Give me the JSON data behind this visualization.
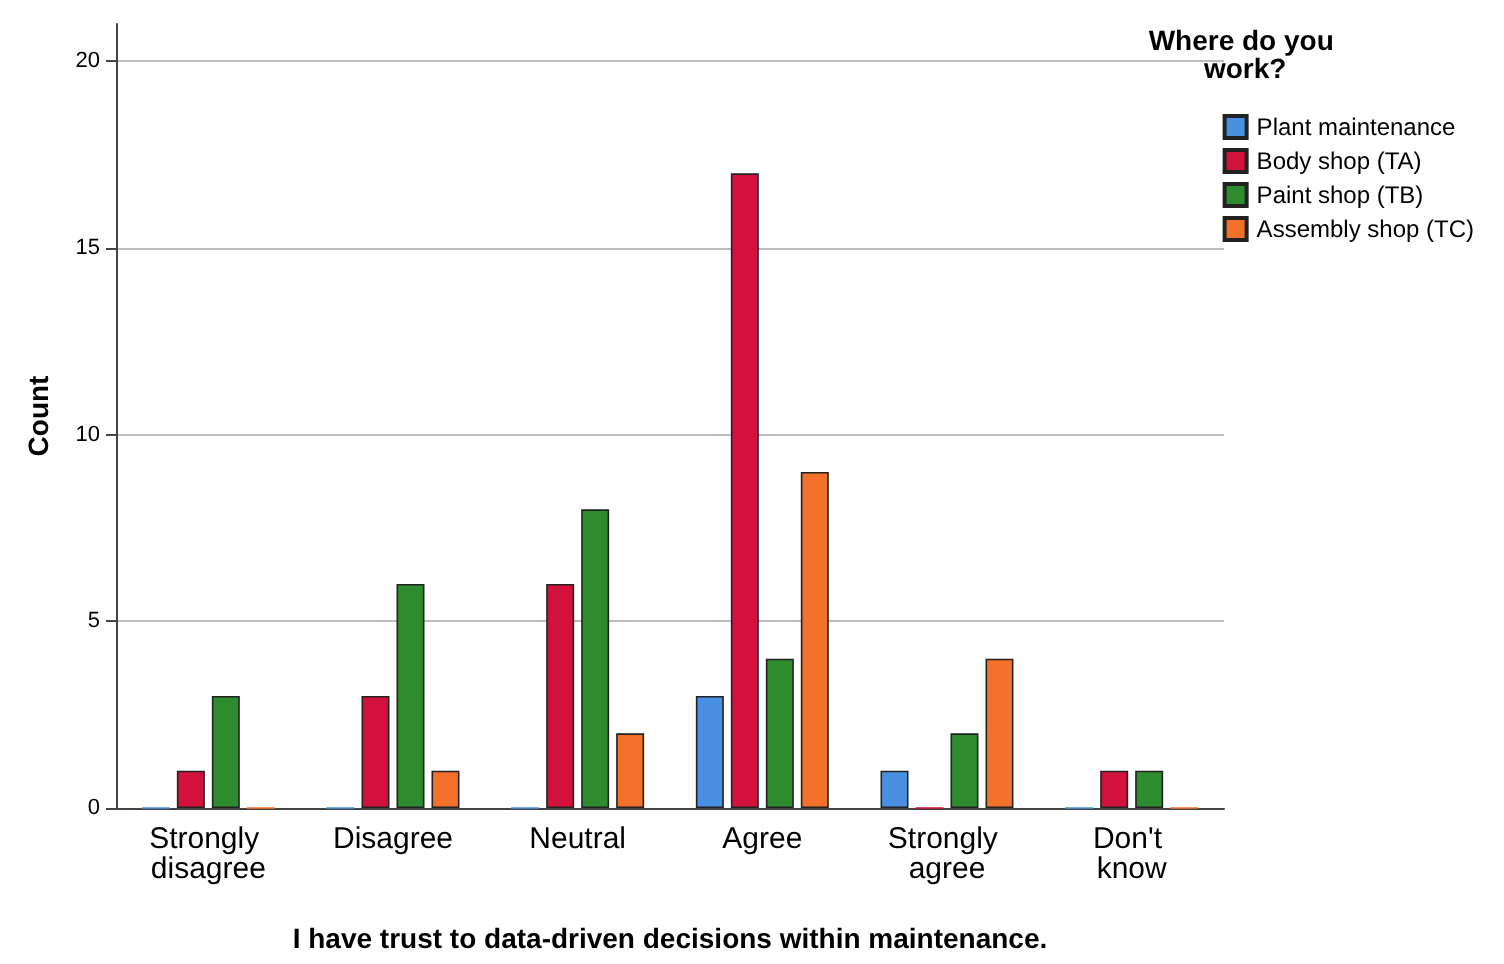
{
  "chart_data": {
    "type": "bar",
    "xlabel": "I have trust to data-driven decisions within maintenance.",
    "ylabel": "Count",
    "legend_title": "Where do you work?",
    "categories": [
      "Strongly disagree",
      "Disagree",
      "Neutral",
      "Agree",
      "Strongly agree",
      "Don't know"
    ],
    "series": [
      {
        "name": "Plant maintenance",
        "color": "#4a90e2",
        "values": [
          0,
          0,
          0,
          3,
          1,
          0
        ]
      },
      {
        "name": "Body shop (TA)",
        "color": "#d2113c",
        "values": [
          1,
          3,
          6,
          17,
          0,
          1
        ]
      },
      {
        "name": "Paint shop (TB)",
        "color": "#2e8b2e",
        "values": [
          3,
          6,
          8,
          4,
          2,
          1
        ]
      },
      {
        "name": "Assembly shop (TC)",
        "color": "#f3712b",
        "values": [
          0,
          1,
          2,
          9,
          4,
          0
        ]
      }
    ],
    "ylim": [
      0,
      21
    ],
    "yticks": [
      0,
      5,
      10,
      15,
      20
    ],
    "grid": "y",
    "legend": "top right"
  }
}
